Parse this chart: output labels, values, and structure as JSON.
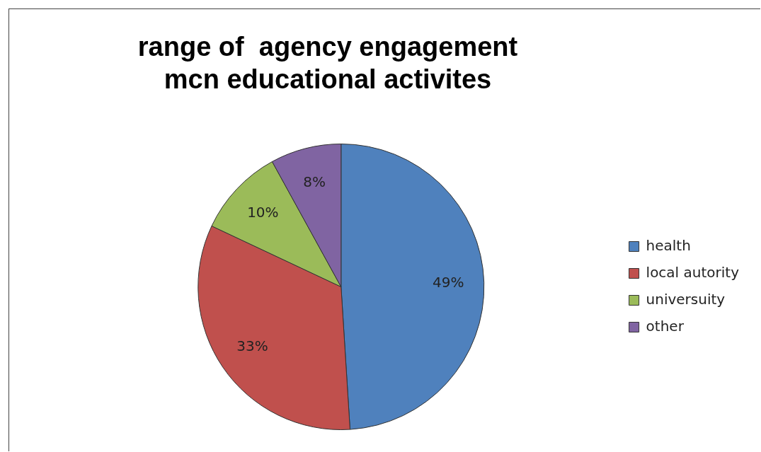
{
  "chart_data": {
    "type": "pie",
    "title": "range of  agency engagement mcn educational activites",
    "categories": [
      "health",
      "local autority",
      "universuity",
      "other"
    ],
    "values": [
      49,
      33,
      10,
      8
    ],
    "colors": [
      "#4f81bd",
      "#c0504d",
      "#9bbb59",
      "#8064a2"
    ],
    "value_labels": [
      "49%",
      "33%",
      "10%",
      "8%"
    ],
    "legend": "right"
  }
}
